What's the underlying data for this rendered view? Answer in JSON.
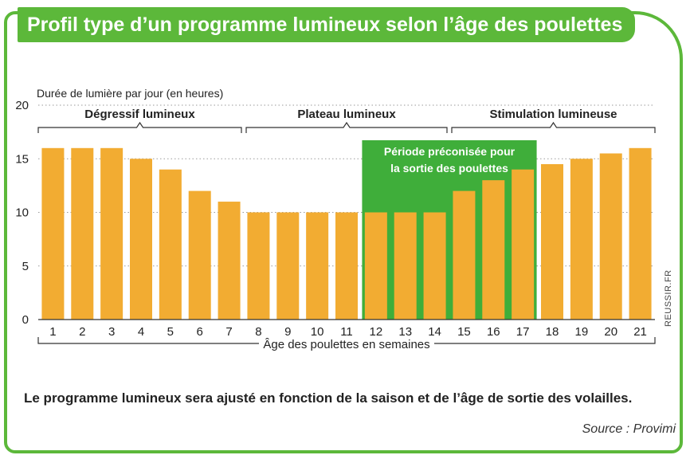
{
  "title": "Profil type d’un programme lumineux selon l’âge des poulettes",
  "caption": "Le programme lumineux sera ajusté en fonction de la saison et de l’âge de sortie des volailles.",
  "source": "Source : Provimi",
  "credit": "REUSSIR.FR",
  "colors": {
    "bar": "#f2ac32",
    "accent": "#5cb83a",
    "highlight": "#3fae3a",
    "text": "#222222",
    "axis": "#333333"
  },
  "chart_data": {
    "type": "bar",
    "ylabel": "Durée de lumière par jour (en heures)",
    "xlabel": "Âge des poulettes en semaines",
    "ylim": [
      0,
      20
    ],
    "yticks": [
      0,
      5,
      10,
      15,
      20
    ],
    "grid": "dotted horizontal",
    "categories": [
      "1",
      "2",
      "3",
      "4",
      "5",
      "6",
      "7",
      "8",
      "9",
      "10",
      "11",
      "12",
      "13",
      "14",
      "15",
      "16",
      "17",
      "18",
      "19",
      "20",
      "21"
    ],
    "values": [
      16,
      16,
      16,
      15,
      14,
      12,
      11,
      10,
      10,
      10,
      10,
      10,
      10,
      10,
      12,
      13,
      14,
      14.5,
      15,
      15.5,
      16
    ],
    "phases": [
      {
        "label": "Dégressif lumineux",
        "from": "1",
        "to": "7"
      },
      {
        "label": "Plateau lumineux",
        "from": "8",
        "to": "14"
      },
      {
        "label": "Stimulation lumineuse",
        "from": "15",
        "to": "21"
      }
    ],
    "highlight": {
      "label_line1": "Période préconisée pour",
      "label_line2": "la sortie des poulettes",
      "from": "12",
      "to": "17"
    }
  }
}
